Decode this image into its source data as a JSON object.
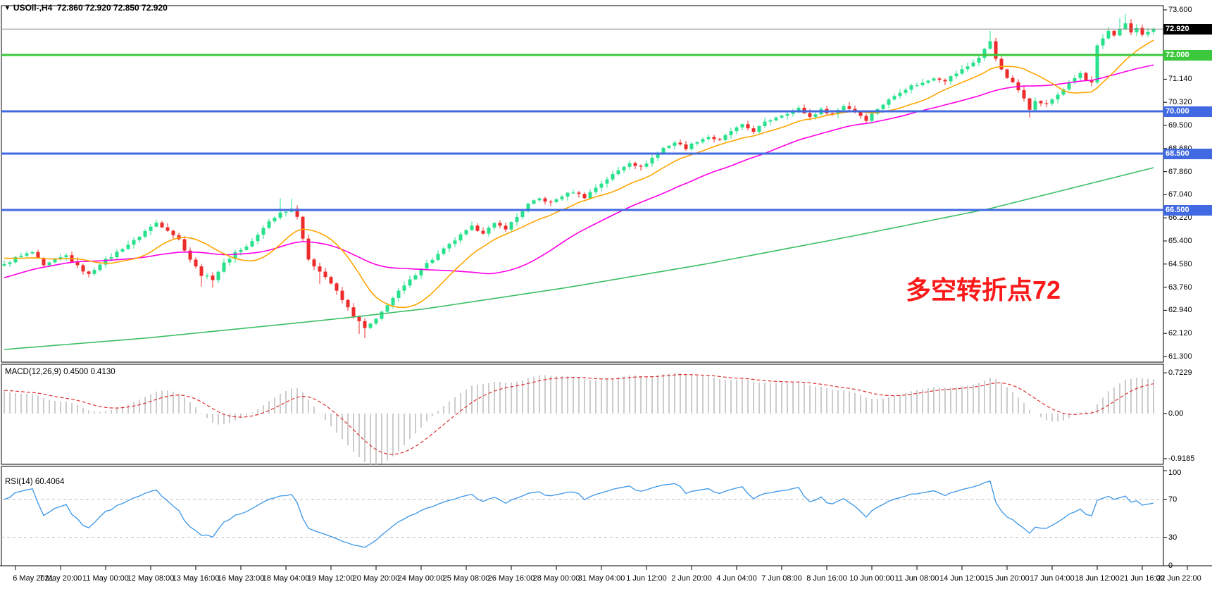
{
  "window": {
    "collapse_icon": "▼",
    "symbol_period": "USOil-,H4",
    "ohlc_values": "72.860 72.920 72.850 72.920"
  },
  "annotation": {
    "text": "多空转折点72",
    "color": "#FA1A1A"
  },
  "colors": {
    "bull": "#28E18C",
    "bear": "#EE2B2B",
    "ma_fast": "#FFA500",
    "ma_medium": "#FF00E6",
    "ma_slow": "#3CBE64",
    "hline_green": "#3CC83C",
    "hline_blue": "#4169E1",
    "price_line": "#888888",
    "price_box_bg": "#000000",
    "macd_hist": "#BBBBBB",
    "macd_signal": "#DC3232",
    "rsi_line": "#3A96E8",
    "rsi_levels": "#BDBDBD",
    "panel_border": "#000000"
  },
  "chart_data": [
    {
      "type": "candlestick",
      "title": "USOil-,H4",
      "candles": 205,
      "y_range": [
        61.3,
        73.6
      ],
      "y_ticks": [
        "73.600",
        "71.140",
        "70.320",
        "69.500",
        "68.680",
        "67.860",
        "67.040",
        "66.220",
        "65.400",
        "64.580",
        "63.760",
        "62.940",
        "62.120",
        "61.300"
      ],
      "boxed_levels": [
        {
          "value": "72.920",
          "price": 72.92,
          "color": "#000000",
          "role": "last-price"
        },
        {
          "value": "72.000",
          "price": 72.0,
          "color": "#3CC83C",
          "role": "resistance-green"
        },
        {
          "value": "70.000",
          "price": 70.0,
          "color": "#4169E1",
          "role": "support-blue"
        },
        {
          "value": "68.500",
          "price": 68.5,
          "color": "#4169E1",
          "role": "support-blue"
        },
        {
          "value": "66.500",
          "price": 66.5,
          "color": "#4169E1",
          "role": "support-blue"
        }
      ],
      "hlines": [
        {
          "price": 72.0,
          "color": "#3CC83C"
        },
        {
          "price": 70.0,
          "color": "#4169E1"
        },
        {
          "price": 68.5,
          "color": "#4169E1"
        },
        {
          "price": 66.5,
          "color": "#4169E1"
        }
      ],
      "last_price": 72.92,
      "x_labels": [
        "6 May 2021",
        "7 May 20:00",
        "11 May 00:00",
        "12 May 08:00",
        "13 May 16:00",
        "16 May 23:00",
        "18 May 04:00",
        "19 May 12:00",
        "20 May 20:00",
        "24 May 00:00",
        "25 May 08:00",
        "26 May 16:00",
        "28 May 00:00",
        "31 May 04:00",
        "1 Jun 12:00",
        "2 Jun 20:00",
        "4 Jun 04:00",
        "7 Jun 08:00",
        "8 Jun 16:00",
        "10 Jun 00:00",
        "11 Jun 08:00",
        "14 Jun 12:00",
        "15 Jun 20:00",
        "17 Jun 04:00",
        "18 Jun 12:00",
        "21 Jun 16:00",
        "22 Jun 22:00"
      ],
      "close_waypoints": [
        [
          0,
          64.55
        ],
        [
          2,
          64.8
        ],
        [
          5,
          65.0
        ],
        [
          7,
          64.5
        ],
        [
          9,
          64.72
        ],
        [
          11,
          64.88
        ],
        [
          13,
          64.5
        ],
        [
          15,
          64.2
        ],
        [
          17,
          64.6
        ],
        [
          19,
          64.85
        ],
        [
          21,
          65.15
        ],
        [
          23,
          65.4
        ],
        [
          25,
          65.75
        ],
        [
          27,
          66.05
        ],
        [
          29,
          65.8
        ],
        [
          31,
          65.45
        ],
        [
          33,
          64.75
        ],
        [
          35,
          64.2
        ],
        [
          37,
          64.05
        ],
        [
          39,
          64.6
        ],
        [
          41,
          65.0
        ],
        [
          43,
          65.2
        ],
        [
          45,
          65.6
        ],
        [
          47,
          66.1
        ],
        [
          49,
          66.4
        ],
        [
          51,
          66.55
        ],
        [
          52,
          66.3
        ],
        [
          53,
          65.5
        ],
        [
          54,
          64.7
        ],
        [
          56,
          64.35
        ],
        [
          58,
          63.9
        ],
        [
          60,
          63.3
        ],
        [
          62,
          62.75
        ],
        [
          64,
          62.3
        ],
        [
          66,
          62.6
        ],
        [
          68,
          63.15
        ],
        [
          70,
          63.6
        ],
        [
          72,
          64.0
        ],
        [
          74,
          64.45
        ],
        [
          76,
          64.75
        ],
        [
          78,
          65.1
        ],
        [
          81,
          65.6
        ],
        [
          83,
          65.9
        ],
        [
          85,
          65.7
        ],
        [
          87,
          66.0
        ],
        [
          89,
          65.85
        ],
        [
          91,
          66.25
        ],
        [
          93,
          66.7
        ],
        [
          95,
          66.9
        ],
        [
          97,
          66.75
        ],
        [
          99,
          67.0
        ],
        [
          101,
          67.15
        ],
        [
          103,
          66.95
        ],
        [
          105,
          67.3
        ],
        [
          107,
          67.6
        ],
        [
          109,
          67.9
        ],
        [
          111,
          68.2
        ],
        [
          113,
          68.0
        ],
        [
          115,
          68.35
        ],
        [
          117,
          68.7
        ],
        [
          119,
          68.9
        ],
        [
          121,
          68.7
        ],
        [
          123,
          68.95
        ],
        [
          125,
          69.1
        ],
        [
          127,
          68.95
        ],
        [
          129,
          69.3
        ],
        [
          131,
          69.5
        ],
        [
          133,
          69.3
        ],
        [
          135,
          69.6
        ],
        [
          137,
          69.8
        ],
        [
          139,
          69.95
        ],
        [
          141,
          70.1
        ],
        [
          143,
          69.8
        ],
        [
          145,
          70.05
        ],
        [
          147,
          69.9
        ],
        [
          149,
          70.2
        ],
        [
          151,
          70.0
        ],
        [
          153,
          69.7
        ],
        [
          155,
          70.1
        ],
        [
          157,
          70.4
        ],
        [
          159,
          70.7
        ],
        [
          161,
          70.9
        ],
        [
          163,
          71.0
        ],
        [
          165,
          71.2
        ],
        [
          167,
          71.1
        ],
        [
          169,
          71.35
        ],
        [
          171,
          71.6
        ],
        [
          173,
          71.9
        ],
        [
          174,
          72.2
        ],
        [
          175,
          72.5
        ],
        [
          176,
          71.9
        ],
        [
          177,
          71.45
        ],
        [
          178,
          71.2
        ],
        [
          179,
          71.0
        ],
        [
          181,
          70.5
        ],
        [
          182,
          70.1
        ],
        [
          183,
          70.35
        ],
        [
          185,
          70.25
        ],
        [
          187,
          70.6
        ],
        [
          189,
          71.0
        ],
        [
          191,
          71.35
        ],
        [
          192,
          71.1
        ],
        [
          193,
          71.0
        ],
        [
          194,
          72.3
        ],
        [
          195,
          72.55
        ],
        [
          196,
          72.85
        ],
        [
          197,
          72.7
        ],
        [
          198,
          72.95
        ],
        [
          199,
          73.1
        ],
        [
          200,
          72.8
        ],
        [
          201,
          72.95
        ],
        [
          202,
          72.7
        ],
        [
          203,
          72.85
        ],
        [
          204,
          72.92
        ]
      ],
      "wick_highs": [
        [
          49,
          66.92
        ],
        [
          51,
          66.9
        ],
        [
          175,
          72.85
        ],
        [
          196,
          73.0
        ],
        [
          198,
          73.3
        ],
        [
          199,
          73.45
        ]
      ],
      "wick_lows": [
        [
          35,
          63.78
        ],
        [
          37,
          63.75
        ],
        [
          56,
          63.88
        ],
        [
          63,
          62.1
        ],
        [
          64,
          61.95
        ],
        [
          182,
          69.78
        ]
      ],
      "ma_lines": [
        {
          "name": "fast",
          "color": "#FFA500",
          "window": 13
        },
        {
          "name": "medium",
          "color": "#FF00E6",
          "window": 34
        },
        {
          "name": "slow",
          "color": "#3CBE64",
          "waypoints": [
            [
              0,
              61.55
            ],
            [
              25,
              61.95
            ],
            [
              50,
              62.45
            ],
            [
              62,
              62.7
            ],
            [
              75,
              63.0
            ],
            [
              100,
              63.75
            ],
            [
              125,
              64.6
            ],
            [
              150,
              65.55
            ],
            [
              175,
              66.55
            ],
            [
              190,
              67.3
            ],
            [
              204,
              68.0
            ]
          ]
        }
      ]
    },
    {
      "type": "macd",
      "label": "MACD(12,26,9) 0.4500 0.4130",
      "params": [
        12,
        26,
        9
      ],
      "macd_value": 0.45,
      "signal_value": 0.413,
      "axis_ticks": [
        "0.7229",
        "0.00",
        "-0.9185"
      ],
      "range": [
        -0.9185,
        0.7229
      ]
    },
    {
      "type": "rsi",
      "label": "RSI(14) 60.4064",
      "period": 14,
      "value": 60.4064,
      "axis_ticks": [
        "100",
        "70",
        "30",
        "0"
      ],
      "levels": [
        70,
        30
      ],
      "range": [
        0,
        100
      ]
    }
  ]
}
